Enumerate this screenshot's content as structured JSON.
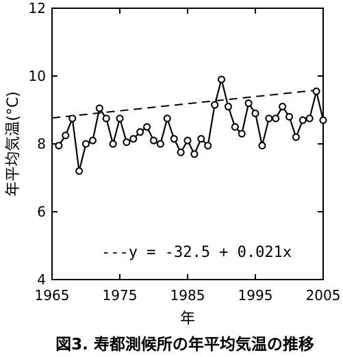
{
  "chart_data": {
    "type": "line",
    "caption": "図3. 寿都測候所の年平均気温の推移",
    "xlabel": "年",
    "ylabel": "年平均気温(°C)",
    "xlim": [
      1965,
      2005
    ],
    "ylim": [
      4,
      12
    ],
    "xticks": [
      1965,
      1975,
      1985,
      1995,
      2005
    ],
    "yticks": [
      4,
      6,
      8,
      10,
      12
    ],
    "series": [
      {
        "x": [
          1966,
          1967,
          1968,
          1969,
          1970,
          1971,
          1972,
          1973,
          1974,
          1975,
          1976,
          1977,
          1978,
          1979,
          1980,
          1981,
          1982,
          1983,
          1984,
          1985,
          1986,
          1987,
          1988,
          1989,
          1990,
          1991,
          1992,
          1993,
          1994,
          1995,
          1996,
          1997,
          1998,
          1999,
          2000,
          2001,
          2002,
          2003,
          2004,
          2005
        ],
        "y": [
          7.95,
          8.25,
          8.75,
          7.2,
          8.0,
          8.1,
          9.05,
          8.75,
          8.0,
          8.75,
          8.05,
          8.15,
          8.35,
          8.5,
          8.1,
          8.0,
          8.75,
          8.15,
          7.75,
          8.1,
          7.7,
          8.15,
          7.95,
          9.15,
          9.9,
          9.1,
          8.5,
          8.3,
          9.2,
          8.9,
          7.95,
          8.75,
          8.75,
          9.1,
          8.8,
          8.2,
          8.7,
          8.75,
          9.55,
          8.7
        ]
      }
    ],
    "trendline": {
      "equation": "---y = -32.5 + 0.021x",
      "intercept": -32.5,
      "slope": 0.021
    },
    "grid": false,
    "legend": "none"
  }
}
